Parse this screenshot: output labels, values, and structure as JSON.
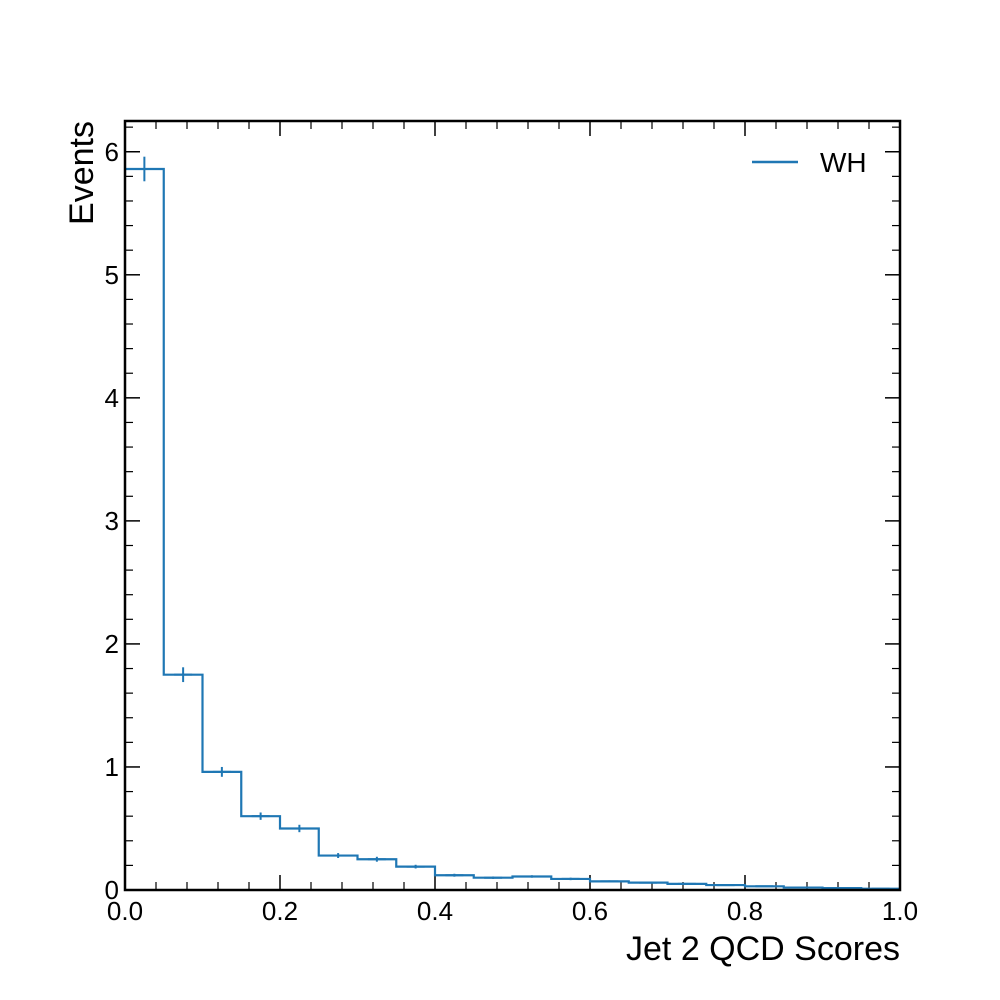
{
  "chart_data": {
    "type": "histogram",
    "title": "",
    "xlabel": "Jet 2 QCD Scores",
    "ylabel": "Events",
    "xlim": [
      0.0,
      1.0
    ],
    "ylim": [
      0,
      6.25
    ],
    "x_ticks": [
      "0.0",
      "0.2",
      "0.4",
      "0.6",
      "0.8",
      "1.0"
    ],
    "y_ticks": [
      "0",
      "1",
      "2",
      "3",
      "4",
      "5",
      "6"
    ],
    "grid": false,
    "legend_position": "top-right",
    "bin_edges": [
      0.0,
      0.05,
      0.1,
      0.15,
      0.2,
      0.25,
      0.3,
      0.35,
      0.4,
      0.45,
      0.5,
      0.55,
      0.6,
      0.65,
      0.7,
      0.75,
      0.8,
      0.85,
      0.9,
      0.95,
      1.0
    ],
    "series": [
      {
        "name": "WH",
        "color": "#1f77b4",
        "values": [
          5.86,
          1.75,
          0.96,
          0.6,
          0.5,
          0.28,
          0.25,
          0.19,
          0.12,
          0.1,
          0.11,
          0.09,
          0.07,
          0.06,
          0.05,
          0.04,
          0.03,
          0.02,
          0.015,
          0.01
        ],
        "errors": [
          0.1,
          0.06,
          0.04,
          0.03,
          0.03,
          0.02,
          0.02,
          0.015,
          0.012,
          0.01,
          0.01,
          0.01,
          0.008,
          0.007,
          0.006,
          0.005,
          0.005,
          0.004,
          0.003,
          0.003
        ]
      }
    ]
  }
}
